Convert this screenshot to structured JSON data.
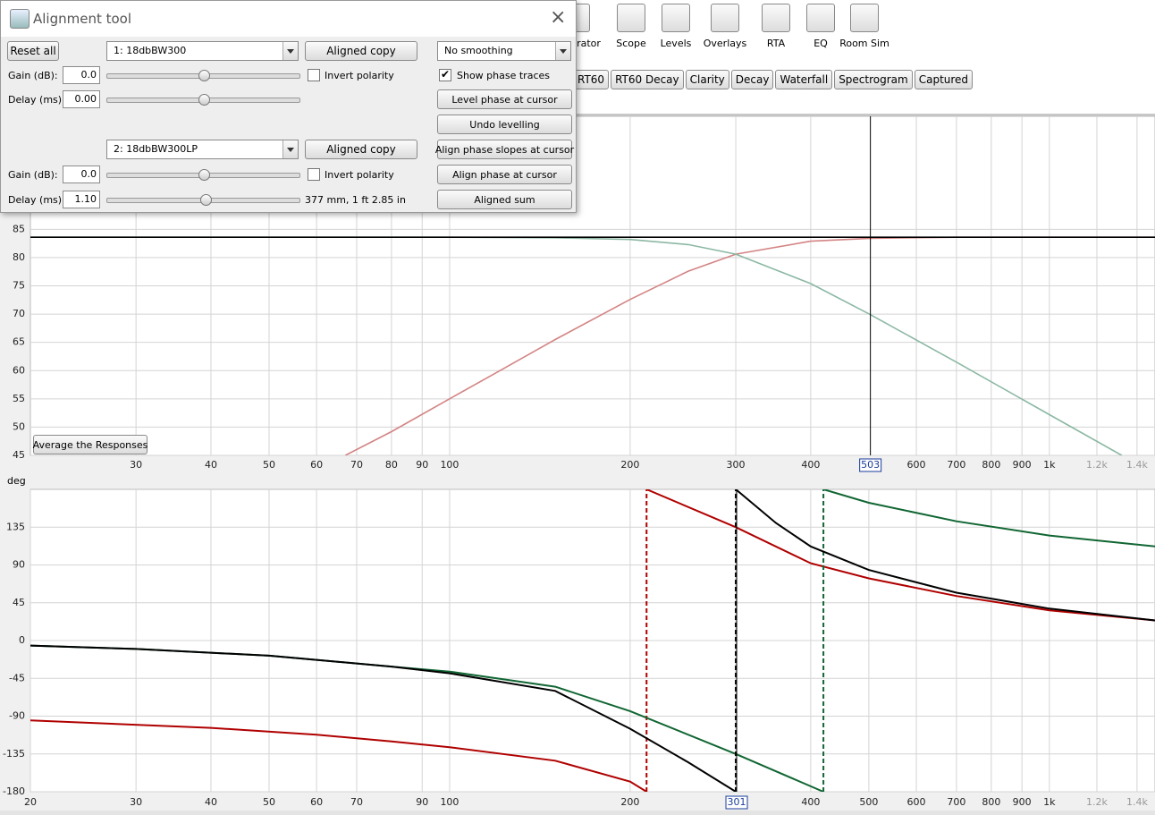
{
  "toolbar": {
    "items": [
      "Generator",
      "Scope",
      "Levels",
      "Overlays",
      "RTA",
      "EQ",
      "Room Sim"
    ]
  },
  "tabs": [
    "RT60",
    "RT60 Decay",
    "Clarity",
    "Decay",
    "Waterfall",
    "Spectrogram",
    "Captured"
  ],
  "average_button": "Average the Responses",
  "dialog": {
    "title": "Alignment tool",
    "reset": "Reset all",
    "smoothing": "No  smoothing",
    "show_phase": "Show phase traces",
    "channels": [
      {
        "selection": "1: 18dbBW300",
        "copy": "Aligned copy",
        "gain_label": "Gain (dB):",
        "gain": "0.0",
        "invert": "Invert polarity",
        "delay_label": "Delay (ms):",
        "delay": "0.00"
      },
      {
        "selection": "2: 18dbBW300LP",
        "copy": "Aligned copy",
        "gain_label": "Gain (dB):",
        "gain": "0.0",
        "invert": "Invert polarity",
        "delay_label": "Delay (ms):",
        "delay": "1.10",
        "distance": "377 mm, 1 ft 2.85 in"
      }
    ],
    "actions": [
      "Level phase at cursor",
      "Undo levelling",
      "Align phase slopes at cursor",
      "Align phase at cursor",
      "Aligned sum"
    ]
  },
  "chart_data": [
    {
      "type": "line",
      "log_x": true,
      "grid": true,
      "xlim": [
        20,
        1500
      ],
      "ylim": [
        45,
        105
      ],
      "xticks": [
        30,
        40,
        50,
        60,
        70,
        80,
        90,
        100,
        200,
        300,
        400,
        600,
        700,
        800,
        900,
        {
          "value": 1000,
          "label": "1k"
        },
        {
          "value": 1200,
          "label": "1.2k"
        },
        {
          "value": 1400,
          "label": "1.4k"
        }
      ],
      "yticks": [
        45,
        50,
        55,
        60,
        65,
        70,
        75,
        80,
        85
      ],
      "cursor": 503,
      "series": [
        {
          "color": "#d48484",
          "x": [
            67,
            80,
            100,
            120,
            150,
            200,
            250,
            300,
            400,
            503,
            700,
            1000,
            1500
          ],
          "values": [
            45.0,
            49.2,
            55.0,
            59.7,
            65.5,
            72.6,
            77.6,
            80.6,
            82.9,
            83.4,
            83.6,
            83.6,
            83.6
          ]
        },
        {
          "color": "#8cb8a4",
          "x": [
            20,
            100,
            150,
            200,
            250,
            300,
            400,
            503,
            700,
            1000,
            1320
          ],
          "values": [
            83.6,
            83.6,
            83.5,
            83.2,
            82.3,
            80.6,
            75.4,
            69.9,
            61.5,
            52.2,
            45.0
          ]
        },
        {
          "color": "#000000",
          "x": [
            20,
            1500
          ],
          "values": [
            83.6,
            83.6
          ]
        }
      ]
    },
    {
      "type": "line",
      "log_x": true,
      "grid": true,
      "y_label": "deg",
      "xlim": [
        20,
        1500
      ],
      "ylim": [
        -180,
        180
      ],
      "xticks": [
        20,
        30,
        40,
        50,
        60,
        70,
        90,
        100,
        200,
        300,
        400,
        500,
        600,
        700,
        800,
        900,
        {
          "value": 1000,
          "label": "1k"
        },
        {
          "value": 1200,
          "label": "1.2k"
        },
        {
          "value": 1400,
          "label": "1.4k"
        }
      ],
      "yticks": [
        -180,
        -135,
        -90,
        -45,
        0,
        45,
        90,
        135
      ],
      "cursor": 301,
      "series": [
        {
          "color": "#b00000",
          "x": [
            20,
            40,
            60,
            80,
            100,
            150,
            200,
            213,
            213,
            213,
            300,
            400,
            500,
            700,
            1000,
            1500
          ],
          "values": [
            -95,
            -104,
            -112,
            -120,
            -127,
            -143,
            -168,
            -180,
            null,
            180,
            135,
            92,
            74,
            53,
            36,
            24
          ]
        },
        {
          "color": "#116633",
          "x": [
            20,
            30,
            50,
            80,
            100,
            150,
            200,
            300,
            420,
            420,
            420,
            500,
            700,
            1000,
            1500
          ],
          "values": [
            -6,
            -10,
            -18,
            -31,
            -37,
            -55,
            -84,
            -135,
            -180,
            null,
            180,
            164,
            142,
            125,
            112
          ]
        },
        {
          "color": "#000000",
          "x": [
            20,
            30,
            50,
            80,
            100,
            150,
            200,
            250,
            300,
            300,
            300,
            350,
            400,
            500,
            700,
            1000,
            1500
          ],
          "values": [
            -6,
            -10,
            -18,
            -31,
            -39,
            -60,
            -105,
            -145,
            -180,
            null,
            180,
            140,
            112,
            84,
            57,
            38,
            24
          ]
        }
      ]
    }
  ]
}
